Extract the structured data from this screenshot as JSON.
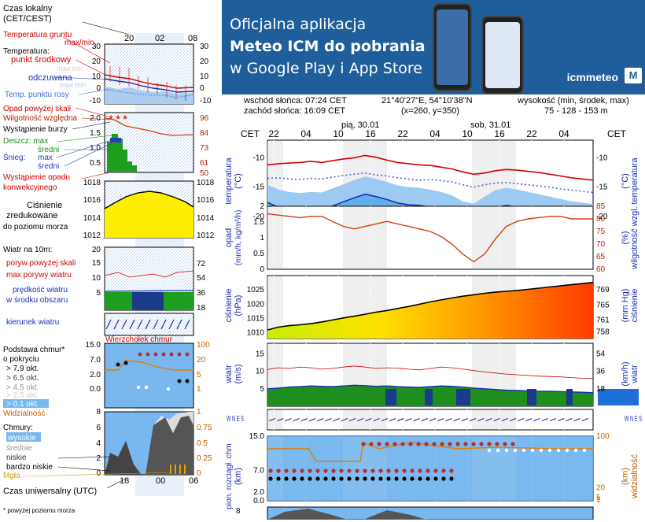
{
  "legend": {
    "time_local": "Czas lokalny",
    "time_local_2": "(CET/CEST)",
    "top_hours": [
      "20",
      "02",
      "08"
    ],
    "soil_temp": "Temperatura gruntu",
    "soil_temp_2": "max/min",
    "temperature": "Temperatura:",
    "mid_point": "punkt środkowy",
    "mid_point_faint": "max min",
    "feels_like": "odczuwana",
    "feels_like_faint": "max min",
    "dew_point": "Temp. punktu rosy",
    "temp_ticks": [
      "30",
      "20",
      "10",
      "0",
      "-10"
    ],
    "precip_above": "Opad powyżej skali",
    "humidity": "Wilgotność względna",
    "thunder": "Wystąpienie burzy",
    "rain": "Deszcz: max",
    "rain_avg": "średni",
    "snow": "Śnieg:",
    "snow_max": "max",
    "snow_avg": "średni",
    "convective": "Wystąpienie opadu",
    "convective_2": "konwekcyjnego",
    "precip_ticks": [
      "2.0",
      "1.5",
      "1.0",
      "0.5"
    ],
    "hum_ticks": [
      "96",
      "84",
      "73",
      "61",
      "50"
    ],
    "pressure": "Ciśnienie",
    "pressure_2": "zredukowane",
    "pressure_3": "do poziomu morza",
    "pres_ticks": [
      "1018",
      "1016",
      "1014",
      "1012"
    ],
    "wind": "Wiatr na 10m:",
    "gust_above": "poryw powyżej skali",
    "gust_max": "max porywy wiatru",
    "wind_speed": "prędkość wiatru",
    "wind_speed_2": "w środku obszaru",
    "wind_ticks_l": [
      "20",
      "15",
      "10",
      "5"
    ],
    "wind_ticks_r": [
      "72",
      "54",
      "36",
      "18"
    ],
    "wind_dir": "kierunek wiatru",
    "windsock": "Wierzchołek chmur",
    "cloud_base": "Podstawa chmur*",
    "cloud_base_2": "o pokryciu",
    "okt": [
      "> 7.9 okt.",
      "> 6.5 okt.",
      "> 4.5 okt.",
      "> 2.5 okt.",
      "> 0.1 okt."
    ],
    "cb_ticks_l": [
      "15.0",
      "7.0",
      "2.0",
      "0.0"
    ],
    "cb_ticks_r": [
      "100",
      "20",
      "5",
      "1"
    ],
    "visibility": "Widzialność",
    "clouds": "Chmury:",
    "cl_high": "wysokie",
    "cl_mid": "średnie",
    "cl_low": "niskie",
    "cl_vlow": "bardzo niskie",
    "fog": "Mgła",
    "cl_ticks_l": [
      "8",
      "6",
      "4",
      "2",
      "0"
    ],
    "cl_ticks_r": [
      "1",
      "0.75",
      "0.5",
      "0.25",
      "0"
    ],
    "bottom_hours": [
      "18",
      "00",
      "06"
    ],
    "utc": "Czas uniwersalny (UTC)",
    "footnote": "* powyżej poziomu morza"
  },
  "banner": {
    "line1": "Oficjalna aplikacja",
    "line2": "Meteo ICM do pobrania",
    "line3": "w Google Play i App Store",
    "brand": "icmmeteo",
    "badge": "M"
  },
  "info": {
    "sunrise": "wschód słońca: 07:24 CET",
    "sunset": "zachód słońca: 16:09 CET",
    "coords": "21°40'27\"E, 54°10'38\"N",
    "grid": "(x=260, y=350)",
    "alt_label": "wysokość (min, środek, max)",
    "alt_values": "75 - 128 - 153 m"
  },
  "axis": {
    "cet": "CET",
    "day1": "pią, 30.01",
    "day2": "sob, 31.01",
    "hours": [
      "22",
      "04",
      "10",
      "16",
      "22",
      "04",
      "10",
      "16",
      "22",
      "04"
    ]
  },
  "panels": {
    "temp": {
      "left": "temperatura",
      "left2": "(°C)",
      "right": "temperatura",
      "right2": "(°C)",
      "ticks": [
        "-10",
        "-15",
        "-20"
      ]
    },
    "precip": {
      "left": "opad",
      "left2": "(mm/h, kg/m²/h)",
      "right": "wilgotność wzgl.",
      "right2": "(%)",
      "ticks_l": [
        "2",
        "1.5",
        "1",
        "0.5",
        "0"
      ],
      "ticks_r": [
        "85",
        "80",
        "75",
        "70",
        "65",
        "60"
      ]
    },
    "pressure": {
      "left": "ciśnienie",
      "left2": "(hPa)",
      "right": "ciśnienie",
      "right2": "(mm Hg)",
      "ticks_l": [
        "1025",
        "1020",
        "1015",
        "1010"
      ],
      "ticks_r": [
        "769",
        "765",
        "761",
        "758"
      ]
    },
    "wind": {
      "left": "wiatr",
      "left2": "(m/s)",
      "right": "wiatr",
      "right2": "(km/h)",
      "ticks_l": [
        "15",
        "10",
        "5"
      ],
      "ticks_r": [
        "54",
        "36",
        "18"
      ]
    },
    "winddir": {
      "compass": "W N E S"
    },
    "cloudbase": {
      "left": "pion. rozciągł. chm",
      "left2": "(km)",
      "right": "widzialność",
      "right2": "(km)",
      "ticks_l": [
        "15.0",
        "7.0",
        "2.0",
        "0.0"
      ],
      "ticks_r": [
        "100",
        "20",
        "5",
        "1"
      ]
    },
    "clouds": {
      "ticks_l": [
        "8"
      ]
    }
  },
  "chart_data": [
    {
      "type": "line",
      "title": "temperatura",
      "ylabel": "temperatura (°C)",
      "ylim": [
        -22,
        -7
      ],
      "series": [
        {
          "values": [
            -11.2,
            -11.0,
            -10.9,
            -10.8,
            -10.6,
            -10.8,
            -10.5,
            -10.2,
            -10.0,
            -9.6,
            -9.9,
            -10.4,
            -10.8,
            -11.0,
            -11.2,
            -11.3,
            -11.6,
            -11.9,
            -12.4,
            -12.8,
            -12.6,
            -12.2,
            -12.0,
            -12.1,
            -12.3,
            -12.5,
            -12.8,
            -13.1,
            -13.4,
            -13.6,
            -13.8
          ]
        },
        {
          "values": [
            -13.5,
            -13.4,
            -13.6,
            -13.7,
            -13.5,
            -13.6,
            -13.3,
            -13.0,
            -12.8,
            -12.6,
            -12.9,
            -13.1,
            -13.4,
            -13.6,
            -13.8,
            -13.7,
            -13.9,
            -14.1,
            -14.6,
            -15.0,
            -14.6,
            -14.3,
            -14.2,
            -14.4,
            -14.6,
            -14.8,
            -15.0,
            -15.3,
            -15.5,
            -15.7,
            -15.9
          ]
        },
        {
          "values": [
            -17.6,
            -18.4,
            -18.8,
            -19.0,
            -18.8,
            -18.9,
            -18.2,
            -17.5,
            -16.8,
            -16.2,
            -16.6,
            -17.1,
            -17.7,
            -18.0,
            -18.1,
            -18.4,
            -18.8,
            -19.4,
            -20.4,
            -20.8,
            -19.6,
            -18.5,
            -18.1,
            -18.4,
            -18.8,
            -19.2,
            -19.6,
            -20.0,
            -20.4,
            -20.6,
            -20.9
          ]
        }
      ]
    },
    {
      "type": "line",
      "title": "opad",
      "ylabel": "opad (mm/h, kg/m²/h)",
      "ylim": [
        0,
        2
      ],
      "series": [
        {
          "values": [
            0,
            0,
            0,
            0,
            0,
            0,
            0,
            0,
            0,
            0,
            0,
            0,
            0,
            0,
            0,
            0,
            0,
            0,
            0,
            0,
            0,
            0,
            0,
            0,
            0,
            0,
            0,
            0,
            0,
            0,
            0
          ]
        },
        {
          "values": [
            82,
            81.5,
            81,
            80.5,
            81,
            81,
            79,
            77,
            76,
            77,
            78,
            79,
            78,
            77,
            76,
            75,
            73,
            70,
            66,
            63,
            66,
            72,
            77,
            79,
            80,
            80.5,
            81,
            81,
            80,
            80,
            80
          ]
        }
      ]
    },
    {
      "type": "area",
      "title": "ciśnienie",
      "ylabel": "ciśnienie (hPa)",
      "ylim": [
        1008,
        1030
      ],
      "series": [
        {
          "values": [
            1011,
            1012,
            1012.5,
            1012.8,
            1013.2,
            1013.8,
            1014.5,
            1015.2,
            1015.8,
            1016.5,
            1017.2,
            1017.8,
            1018.5,
            1019.2,
            1020,
            1020.8,
            1021.5,
            1022.2,
            1022.8,
            1023.3,
            1023.8,
            1024.2,
            1024.5,
            1024.8,
            1025.2,
            1025.6,
            1026,
            1026.4,
            1026.8,
            1027.2,
            1027.6
          ]
        }
      ]
    },
    {
      "type": "area",
      "title": "wiatr",
      "ylabel": "wiatr (m/s)",
      "ylim": [
        0,
        18
      ],
      "series": [
        {
          "values": [
            5,
            5.2,
            5.5,
            5.6,
            5.8,
            5.7,
            5.6,
            5.8,
            6.0,
            5.9,
            5.7,
            5.8,
            5.6,
            5.5,
            5.4,
            5.6,
            5.8,
            5.7,
            5.5,
            5.2,
            5.0,
            4.8,
            4.6,
            4.5,
            4.4,
            4.3,
            4.3,
            4.2,
            4.1,
            4.0,
            3.9
          ]
        },
        {
          "values": [
            10.5,
            11,
            10.8,
            11.2,
            11,
            10.6,
            10.8,
            11.2,
            11.5,
            11.2,
            10.8,
            11,
            10.9,
            10.6,
            10.4,
            10.8,
            11.2,
            11,
            10.6,
            10.2,
            9.8,
            9.5,
            9.2,
            9.0,
            8.8,
            8.6,
            8.5,
            8.4,
            8.2,
            8.0,
            7.9
          ]
        }
      ]
    }
  ]
}
